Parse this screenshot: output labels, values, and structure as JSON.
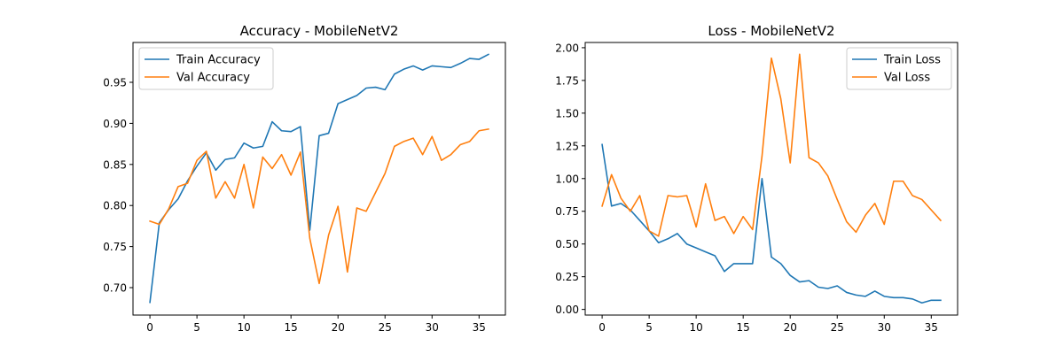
{
  "chart_data": [
    {
      "type": "line",
      "title": "Accuracy - MobileNetV2",
      "xlabel": "",
      "ylabel": "",
      "xlim": [
        -1.8,
        37.8
      ],
      "ylim": [
        0.6666,
        0.9985
      ],
      "xticks": [
        0,
        5,
        10,
        15,
        20,
        25,
        30,
        35
      ],
      "yticks": [
        0.7,
        0.75,
        0.8,
        0.85,
        0.9,
        0.95
      ],
      "ytick_decimals": 2,
      "legend_position": "upper-left",
      "grid": false,
      "x": [
        0,
        1,
        2,
        3,
        4,
        5,
        6,
        7,
        8,
        9,
        10,
        11,
        12,
        13,
        14,
        15,
        16,
        17,
        18,
        19,
        20,
        21,
        22,
        23,
        24,
        25,
        26,
        27,
        28,
        29,
        30,
        31,
        32,
        33,
        34,
        35,
        36
      ],
      "series": [
        {
          "name": "Train Accuracy",
          "color": "#1f77b4",
          "values": [
            0.682,
            0.779,
            0.795,
            0.808,
            0.83,
            0.848,
            0.864,
            0.843,
            0.856,
            0.858,
            0.876,
            0.87,
            0.872,
            0.902,
            0.891,
            0.89,
            0.896,
            0.77,
            0.885,
            0.888,
            0.924,
            0.929,
            0.934,
            0.943,
            0.944,
            0.941,
            0.96,
            0.966,
            0.97,
            0.965,
            0.97,
            0.969,
            0.968,
            0.973,
            0.979,
            0.978,
            0.984
          ]
        },
        {
          "name": "Val Accuracy",
          "color": "#ff7f0e",
          "values": [
            0.781,
            0.777,
            0.796,
            0.823,
            0.827,
            0.855,
            0.866,
            0.809,
            0.829,
            0.809,
            0.85,
            0.797,
            0.859,
            0.845,
            0.862,
            0.837,
            0.865,
            0.76,
            0.705,
            0.764,
            0.799,
            0.719,
            0.797,
            0.793,
            0.816,
            0.839,
            0.872,
            0.878,
            0.882,
            0.862,
            0.884,
            0.855,
            0.862,
            0.874,
            0.878,
            0.891,
            0.893
          ]
        }
      ]
    },
    {
      "type": "line",
      "title": "Loss - MobileNetV2",
      "xlabel": "",
      "ylabel": "",
      "xlim": [
        -1.8,
        37.8
      ],
      "ylim": [
        -0.043,
        2.04
      ],
      "xticks": [
        0,
        5,
        10,
        15,
        20,
        25,
        30,
        35
      ],
      "yticks": [
        0.0,
        0.25,
        0.5,
        0.75,
        1.0,
        1.25,
        1.5,
        1.75,
        2.0
      ],
      "ytick_decimals": 2,
      "legend_position": "upper-right",
      "grid": false,
      "x": [
        0,
        1,
        2,
        3,
        4,
        5,
        6,
        7,
        8,
        9,
        10,
        11,
        12,
        13,
        14,
        15,
        16,
        17,
        18,
        19,
        20,
        21,
        22,
        23,
        24,
        25,
        26,
        27,
        28,
        29,
        30,
        31,
        32,
        33,
        34,
        35,
        36
      ],
      "series": [
        {
          "name": "Train Loss",
          "color": "#1f77b4",
          "values": [
            1.26,
            0.79,
            0.81,
            0.76,
            0.68,
            0.6,
            0.51,
            0.54,
            0.58,
            0.5,
            0.47,
            0.44,
            0.41,
            0.29,
            0.35,
            0.35,
            0.35,
            1.0,
            0.4,
            0.35,
            0.26,
            0.21,
            0.22,
            0.17,
            0.16,
            0.18,
            0.13,
            0.11,
            0.1,
            0.14,
            0.1,
            0.09,
            0.09,
            0.08,
            0.05,
            0.07,
            0.07
          ]
        },
        {
          "name": "Val Loss",
          "color": "#ff7f0e",
          "values": [
            0.79,
            1.03,
            0.85,
            0.75,
            0.87,
            0.6,
            0.56,
            0.87,
            0.86,
            0.87,
            0.63,
            0.96,
            0.68,
            0.71,
            0.58,
            0.71,
            0.61,
            1.17,
            1.92,
            1.61,
            1.12,
            1.95,
            1.16,
            1.12,
            1.02,
            0.84,
            0.67,
            0.59,
            0.72,
            0.81,
            0.65,
            0.98,
            0.98,
            0.87,
            0.84,
            0.76,
            0.68
          ]
        }
      ]
    }
  ]
}
